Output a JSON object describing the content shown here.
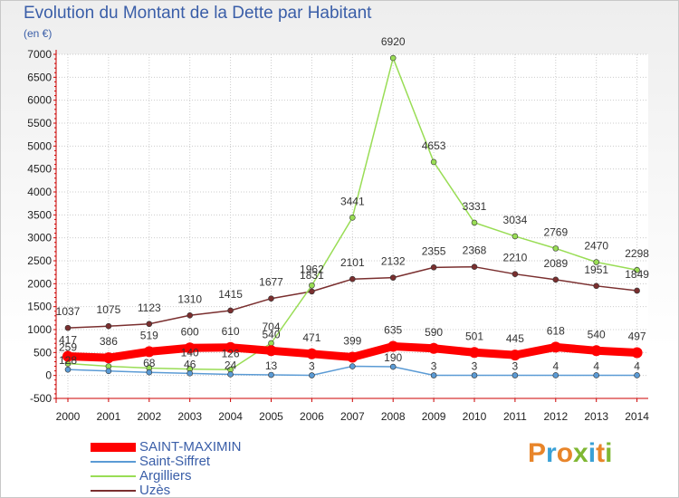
{
  "header": {
    "title": "Evolution du Montant de la Dette par Habitant",
    "unit": "(en €)"
  },
  "brand": {
    "text": "Proxiti",
    "colors": [
      "#e8852a",
      "#3aa1d6",
      "#e8852a",
      "#7fb733",
      "#3aa1d6",
      "#e8852a",
      "#7fb733"
    ]
  },
  "chart_data": {
    "type": "line",
    "title": "Evolution du Montant de la Dette par Habitant",
    "ylabel": "(en €)",
    "xlabel": "",
    "x": [
      "2000",
      "2001",
      "2002",
      "2003",
      "2004",
      "2005",
      "2006",
      "2007",
      "2008",
      "2009",
      "2010",
      "2011",
      "2012",
      "2013",
      "2014"
    ],
    "ylim": [
      -500,
      7000
    ],
    "yticks": [
      "-500",
      "0",
      "500",
      "1000",
      "1500",
      "2000",
      "2500",
      "3000",
      "3500",
      "4000",
      "4500",
      "5000",
      "5500",
      "6000",
      "6500",
      "7000"
    ],
    "grid": true,
    "legend_position": "bottom-left",
    "series": [
      {
        "name": "SAINT-MAXIMIN",
        "color": "#ff0000",
        "values": [
          417,
          386,
          519,
          600,
          610,
          540,
          471,
          399,
          635,
          590,
          501,
          445,
          618,
          540,
          497
        ],
        "labels": [
          "417",
          "386",
          "519",
          "600",
          "610",
          "540",
          "471",
          "399",
          "635",
          "590",
          "501",
          "445",
          "618",
          "540",
          "497"
        ]
      },
      {
        "name": "Saint-Siffret",
        "color": "#5b9bd5",
        "values": [
          128,
          96,
          68,
          46,
          24,
          13,
          3,
          200,
          190,
          3,
          3,
          3,
          4,
          4,
          4
        ],
        "labels": [
          "128",
          "",
          "68",
          "46",
          "24",
          "13",
          "3",
          "",
          "190",
          "3",
          "3",
          "3",
          "4",
          "4",
          "4"
        ]
      },
      {
        "name": "Argilliers",
        "color": "#99dd55",
        "values": [
          259,
          200,
          162,
          140,
          126,
          704,
          1962,
          3441,
          6920,
          4653,
          3331,
          3034,
          2769,
          2470,
          2298
        ],
        "labels": [
          "259",
          "",
          "",
          "140",
          "126",
          "704",
          "1962",
          "3441",
          "6920",
          "4653",
          "3331",
          "3034",
          "2769",
          "2470",
          "2298"
        ]
      },
      {
        "name": "Uzès",
        "color": "#7a2f2f",
        "values": [
          1037,
          1075,
          1123,
          1310,
          1415,
          1677,
          1831,
          2101,
          2132,
          2355,
          2368,
          2210,
          2089,
          1951,
          1849
        ],
        "labels": [
          "1037",
          "1075",
          "1123",
          "1310",
          "1415",
          "1677",
          "1831",
          "2101",
          "2132",
          "2355",
          "2368",
          "2210",
          "2089",
          "1951",
          "1849"
        ]
      }
    ]
  }
}
